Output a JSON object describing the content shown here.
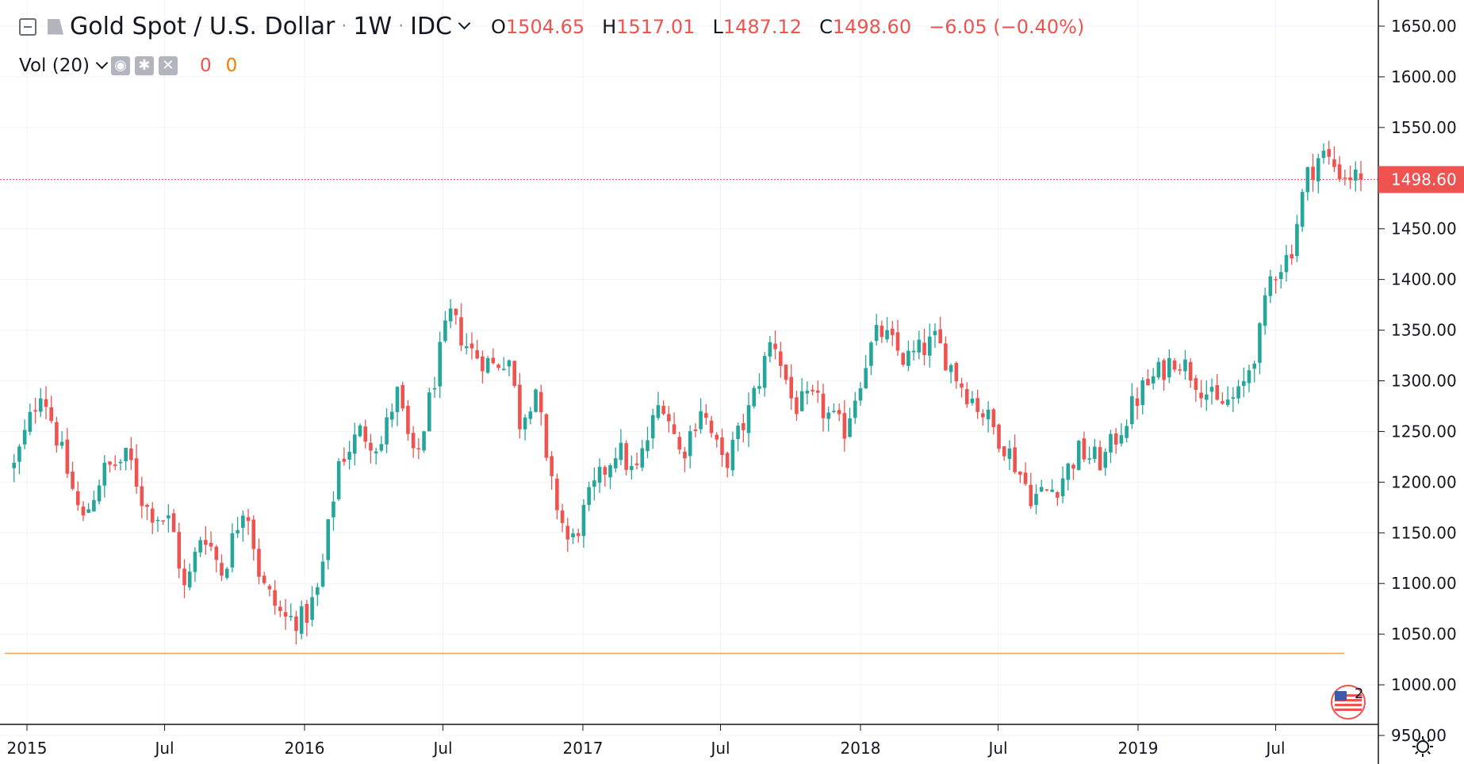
{
  "legend": {
    "symbol": "Gold Spot / U.S. Dollar",
    "interval": "1W",
    "exchange": "IDC",
    "open_key": "O",
    "open": "1504.65",
    "high_key": "H",
    "high": "1517.01",
    "low_key": "L",
    "low": "1487.12",
    "close_key": "C",
    "close": "1498.60",
    "change": "−6.05 (−0.40%)"
  },
  "volume": {
    "label": "Vol (20)",
    "value_a": "0",
    "value_b": "0"
  },
  "icons": [
    "collapse-icon",
    "flag-icon",
    "chevron-down-icon",
    "eye-icon",
    "gear-icon",
    "close-icon",
    "us-flag-icon",
    "settings-icon"
  ],
  "events_badge": "2",
  "price_tag": "1498.60",
  "colors": {
    "up": "#26a69a",
    "down": "#ef5350",
    "last_price": "#ef5350",
    "reference_line": "#f7a35c",
    "grid": "#f0f3fa"
  },
  "chart_data": {
    "type": "candlestick",
    "symbol": "Gold Spot / U.S. Dollar",
    "interval": "1W",
    "ylim": [
      950,
      1650
    ],
    "y_ticks": [
      950,
      1000,
      1050,
      1100,
      1150,
      1200,
      1250,
      1300,
      1350,
      1400,
      1450,
      1500,
      1550,
      1600,
      1650
    ],
    "y_tick_labels": [
      "950.00",
      "1000.00",
      "1050.00",
      "1100.00",
      "1150.00",
      "1200.00",
      "1250.00",
      "1300.00",
      "1350.00",
      "1400.00",
      "1450.00",
      "1500.00",
      "1550.00",
      "1600.00",
      "1650.00"
    ],
    "x_ticks": [
      {
        "label": "2015",
        "date": "2015-01-01"
      },
      {
        "label": "Jul",
        "date": "2015-07-01"
      },
      {
        "label": "2016",
        "date": "2016-01-01"
      },
      {
        "label": "Jul",
        "date": "2016-07-01"
      },
      {
        "label": "2017",
        "date": "2017-01-01"
      },
      {
        "label": "Jul",
        "date": "2017-07-01"
      },
      {
        "label": "2018",
        "date": "2018-01-01"
      },
      {
        "label": "Jul",
        "date": "2018-07-01"
      },
      {
        "label": "2019",
        "date": "2019-01-01"
      },
      {
        "label": "Jul",
        "date": "2019-07-01"
      }
    ],
    "last_price": 1498.6,
    "reference_line": 1031,
    "grid": true,
    "close_anchors": [
      [
        "2014-12-15",
        1215
      ],
      [
        "2015-01-20",
        1295
      ],
      [
        "2015-02-15",
        1230
      ],
      [
        "2015-03-15",
        1160
      ],
      [
        "2015-04-10",
        1210
      ],
      [
        "2015-05-15",
        1225
      ],
      [
        "2015-06-05",
        1175
      ],
      [
        "2015-07-10",
        1160
      ],
      [
        "2015-07-28",
        1090
      ],
      [
        "2015-08-20",
        1155
      ],
      [
        "2015-09-15",
        1110
      ],
      [
        "2015-10-15",
        1185
      ],
      [
        "2015-11-05",
        1100
      ],
      [
        "2015-12-05",
        1065
      ],
      [
        "2016-01-01",
        1065
      ],
      [
        "2016-01-20",
        1095
      ],
      [
        "2016-02-15",
        1220
      ],
      [
        "2016-03-15",
        1250
      ],
      [
        "2016-04-10",
        1235
      ],
      [
        "2016-05-01",
        1290
      ],
      [
        "2016-05-25",
        1215
      ],
      [
        "2016-06-25",
        1320
      ],
      [
        "2016-07-10",
        1365
      ],
      [
        "2016-08-05",
        1330
      ],
      [
        "2016-09-05",
        1315
      ],
      [
        "2016-09-25",
        1325
      ],
      [
        "2016-10-10",
        1260
      ],
      [
        "2016-11-01",
        1295
      ],
      [
        "2016-11-15",
        1210
      ],
      [
        "2016-12-15",
        1135
      ],
      [
        "2017-01-10",
        1185
      ],
      [
        "2017-02-15",
        1235
      ],
      [
        "2017-03-10",
        1205
      ],
      [
        "2017-04-15",
        1285
      ],
      [
        "2017-05-10",
        1225
      ],
      [
        "2017-06-05",
        1275
      ],
      [
        "2017-07-05",
        1215
      ],
      [
        "2017-08-05",
        1265
      ],
      [
        "2017-09-08",
        1345
      ],
      [
        "2017-10-05",
        1275
      ],
      [
        "2017-11-01",
        1280
      ],
      [
        "2017-12-10",
        1250
      ],
      [
        "2018-01-10",
        1325
      ],
      [
        "2018-01-26",
        1350
      ],
      [
        "2018-03-01",
        1320
      ],
      [
        "2018-04-10",
        1340
      ],
      [
        "2018-05-15",
        1295
      ],
      [
        "2018-06-15",
        1265
      ],
      [
        "2018-07-15",
        1230
      ],
      [
        "2018-08-15",
        1185
      ],
      [
        "2018-09-15",
        1195
      ],
      [
        "2018-10-15",
        1230
      ],
      [
        "2018-11-15",
        1220
      ],
      [
        "2019-01-05",
        1290
      ],
      [
        "2019-02-20",
        1325
      ],
      [
        "2019-03-15",
        1305
      ],
      [
        "2019-04-15",
        1275
      ],
      [
        "2019-05-15",
        1285
      ],
      [
        "2019-06-10",
        1345
      ],
      [
        "2019-06-25",
        1405
      ],
      [
        "2019-07-20",
        1425
      ],
      [
        "2019-08-10",
        1500
      ],
      [
        "2019-08-30",
        1525
      ],
      [
        "2019-09-25",
        1505
      ],
      [
        "2019-10-25",
        1498.6
      ]
    ]
  }
}
